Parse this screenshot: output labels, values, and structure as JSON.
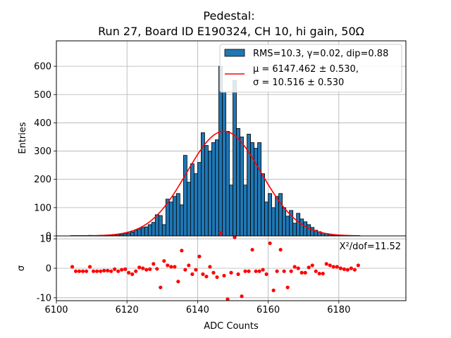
{
  "chart_data": {
    "type": "bar",
    "title_line1": "Pedestal:",
    "title_line2": "Run 27, Board ID E190324, CH 10, hi gain, 50Ω",
    "xlabel": "ADC Counts",
    "ylabel_top": "Entries",
    "ylabel_bottom": "σ",
    "xlim": [
      6100,
      6199
    ],
    "ylim_top": [
      0,
      690
    ],
    "ylim_bottom": [
      -11,
      11
    ],
    "xticks": [
      6100,
      6120,
      6140,
      6160,
      6180
    ],
    "yticks_top": [
      0,
      100,
      200,
      300,
      400,
      500,
      600
    ],
    "yticks_bottom": [
      -10,
      0,
      10
    ],
    "grid": true,
    "legend_position": "top-right",
    "legend": {
      "hist_label": "RMS=10.3, γ=0.02, dip=0.88",
      "fit_line1": "μ = 6147.462 ± 0.530,",
      "fit_line2": "σ = 10.516 ± 0.530"
    },
    "chi2_label": "X²/dof=11.52",
    "bin_start": 6104,
    "bin_width": 1,
    "counts": [
      1,
      1,
      1,
      1,
      1,
      2,
      1,
      1,
      2,
      2,
      2,
      3,
      4,
      5,
      5,
      8,
      10,
      14,
      20,
      25,
      30,
      32,
      40,
      48,
      75,
      72,
      40,
      130,
      120,
      140,
      150,
      110,
      285,
      190,
      255,
      220,
      260,
      365,
      320,
      300,
      330,
      340,
      600,
      510,
      370,
      180,
      550,
      380,
      350,
      180,
      360,
      330,
      310,
      330,
      220,
      120,
      150,
      100,
      140,
      150,
      100,
      70,
      90,
      45,
      80,
      60,
      50,
      40,
      30,
      20,
      15,
      10,
      8,
      5,
      2,
      1,
      1,
      1,
      1,
      1,
      1,
      1
    ],
    "fit": {
      "mu": 6147.462,
      "sigma": 10.516,
      "peak": 370
    },
    "residuals_x": [
      6104.5,
      6105.5,
      6106.5,
      6107.5,
      6108.5,
      6109.5,
      6110.5,
      6111.5,
      6112.5,
      6113.5,
      6114.5,
      6115.5,
      6116.5,
      6117.5,
      6118.5,
      6119.5,
      6120.5,
      6121.5,
      6122.5,
      6123.5,
      6124.5,
      6125.5,
      6126.5,
      6127.5,
      6128.5,
      6129.5,
      6130.5,
      6131.5,
      6132.5,
      6133.5,
      6134.5,
      6135.5,
      6136.5,
      6137.5,
      6138.5,
      6139.5,
      6140.5,
      6141.5,
      6142.5,
      6143.5,
      6144.5,
      6145.5,
      6146.5,
      6147.5,
      6148.5,
      6149.5,
      6150.5,
      6151.5,
      6152.5,
      6153.5,
      6154.5,
      6155.5,
      6156.5,
      6157.5,
      6158.5,
      6159.5,
      6160.5,
      6161.5,
      6162.5,
      6163.5,
      6164.5,
      6165.5,
      6166.5,
      6167.5,
      6168.5,
      6169.5,
      6170.5,
      6171.5,
      6172.5,
      6173.5,
      6174.5,
      6175.5,
      6176.5,
      6177.5,
      6178.5,
      6179.5,
      6180.5,
      6181.5,
      6182.5,
      6183.5,
      6184.5,
      6185.5
    ],
    "residuals": [
      0.5,
      -1.0,
      -1.0,
      -1.0,
      -1.0,
      0.5,
      -1.0,
      -1.0,
      -1.0,
      -0.8,
      -0.8,
      -1.0,
      -0.3,
      -1.0,
      -0.5,
      -0.3,
      -1.5,
      -2.0,
      -1.0,
      0.3,
      0.0,
      -0.5,
      -0.3,
      1.5,
      -0.2,
      -6.5,
      2.5,
      1.0,
      0.5,
      0.5,
      -4.5,
      6.0,
      -0.5,
      1.0,
      -2.0,
      -0.5,
      4.0,
      -2.0,
      -2.8,
      0.5,
      -1.5,
      -3.0,
      12.0,
      -2.5,
      -10.5,
      -1.5,
      10.5,
      -2.0,
      -9.5,
      -1.0,
      -1.0,
      6.3,
      -1.0,
      -1.0,
      -0.5,
      -2.0,
      8.5,
      -7.5,
      -1.0,
      6.3,
      -1.0,
      -6.5,
      -1.0,
      0.5,
      0.0,
      -1.5,
      -1.5,
      0.3,
      1.0,
      -1.0,
      -1.8,
      -1.8,
      1.5,
      1.0,
      0.5,
      0.5,
      0.0,
      -0.3,
      -0.5,
      0.0,
      -0.5,
      1.0
    ]
  }
}
